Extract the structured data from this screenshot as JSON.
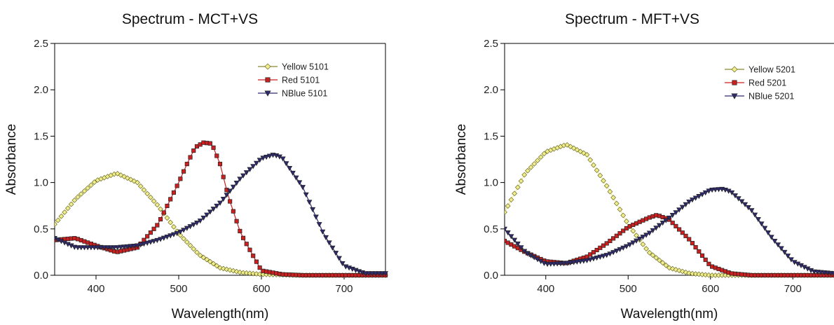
{
  "chart_data": [
    {
      "type": "line",
      "title": "Spectrum - MCT+VS",
      "xlabel": "Wavelength(nm)",
      "ylabel": "Absorbance",
      "xlim": [
        350,
        750
      ],
      "ylim": [
        0,
        2.5
      ],
      "xticks": [
        "400",
        "500",
        "600",
        "700"
      ],
      "yticks": [
        "0.0",
        "0.5",
        "1.0",
        "1.5",
        "2.0",
        "2.5"
      ],
      "grid": false,
      "legend_position": "top-right",
      "series": [
        {
          "name": "Yellow 5101",
          "color": "#f0ee8a",
          "marker": "diamond",
          "x": [
            350,
            375,
            400,
            425,
            450,
            475,
            500,
            525,
            550,
            575,
            600,
            650,
            700,
            750
          ],
          "y": [
            0.55,
            0.82,
            1.02,
            1.1,
            1.0,
            0.75,
            0.45,
            0.22,
            0.08,
            0.03,
            0.01,
            0.0,
            0.0,
            0.0
          ]
        },
        {
          "name": "Red 5101",
          "color": "#cc1f1f",
          "marker": "square",
          "x": [
            350,
            375,
            400,
            425,
            450,
            475,
            500,
            510,
            520,
            530,
            540,
            550,
            560,
            575,
            600,
            625,
            650,
            700,
            750
          ],
          "y": [
            0.38,
            0.4,
            0.32,
            0.25,
            0.3,
            0.55,
            1.0,
            1.2,
            1.38,
            1.43,
            1.42,
            1.2,
            0.85,
            0.45,
            0.05,
            0.01,
            0.0,
            0.0,
            0.0
          ]
        },
        {
          "name": "NBlue 5101",
          "color": "#2e2a6e",
          "marker": "triangle-down",
          "x": [
            350,
            375,
            400,
            425,
            450,
            475,
            500,
            525,
            550,
            575,
            600,
            615,
            625,
            650,
            675,
            700,
            725,
            750
          ],
          "y": [
            0.4,
            0.3,
            0.3,
            0.3,
            0.32,
            0.38,
            0.46,
            0.58,
            0.78,
            1.05,
            1.26,
            1.3,
            1.27,
            0.95,
            0.45,
            0.1,
            0.02,
            0.02
          ]
        }
      ]
    },
    {
      "type": "line",
      "title": "Spectrum - MFT+VS",
      "xlabel": "Wavelength(nm)",
      "ylabel": "Absorbance",
      "xlim": [
        350,
        750
      ],
      "ylim": [
        0,
        2.5
      ],
      "xticks": [
        "400",
        "500",
        "600",
        "700"
      ],
      "yticks": [
        "0.0",
        "0.5",
        "1.0",
        "1.5",
        "2.0",
        "2.5"
      ],
      "grid": false,
      "legend_position": "top-right",
      "series": [
        {
          "name": "Yellow 5201",
          "color": "#f0ee8a",
          "marker": "diamond",
          "x": [
            350,
            375,
            400,
            425,
            450,
            475,
            500,
            525,
            550,
            575,
            600,
            650,
            700,
            750
          ],
          "y": [
            0.68,
            1.1,
            1.33,
            1.41,
            1.3,
            0.95,
            0.55,
            0.25,
            0.08,
            0.02,
            0.0,
            0.0,
            0.0,
            0.0
          ]
        },
        {
          "name": "Red 5201",
          "color": "#cc1f1f",
          "marker": "square",
          "x": [
            350,
            375,
            400,
            425,
            450,
            475,
            500,
            525,
            535,
            550,
            575,
            600,
            625,
            650,
            700,
            750
          ],
          "y": [
            0.37,
            0.25,
            0.15,
            0.13,
            0.2,
            0.35,
            0.52,
            0.62,
            0.65,
            0.6,
            0.38,
            0.1,
            0.02,
            0.0,
            0.0,
            0.0
          ]
        },
        {
          "name": "NBlue 5201",
          "color": "#2e2a6e",
          "marker": "triangle-down",
          "x": [
            350,
            375,
            400,
            425,
            450,
            475,
            500,
            525,
            550,
            575,
            600,
            615,
            625,
            650,
            675,
            700,
            725,
            750
          ],
          "y": [
            0.5,
            0.25,
            0.12,
            0.13,
            0.16,
            0.22,
            0.32,
            0.45,
            0.62,
            0.8,
            0.92,
            0.93,
            0.9,
            0.7,
            0.4,
            0.15,
            0.04,
            0.02
          ]
        }
      ]
    }
  ]
}
